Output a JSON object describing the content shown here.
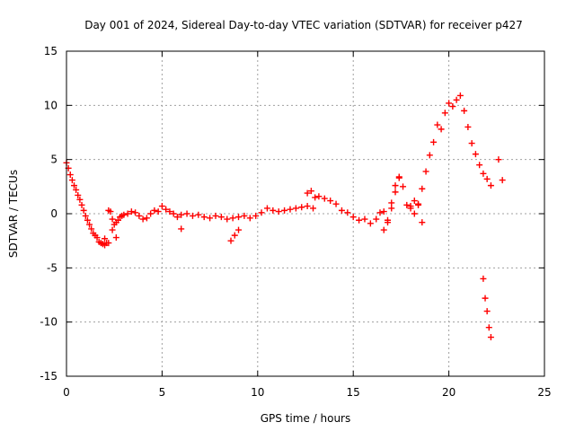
{
  "chart_data": {
    "type": "scatter",
    "title": "Day 001 of 2024, Sidereal Day-to-day VTEC variation (SDTVAR) for receiver p427",
    "xlabel": "GPS time / hours",
    "ylabel": "SDTVAR / TECUs",
    "xlim": [
      0,
      25
    ],
    "ylim": [
      -15,
      15
    ],
    "xticks": [
      0,
      5,
      10,
      15,
      20,
      25
    ],
    "yticks": [
      -15,
      -10,
      -5,
      0,
      5,
      10,
      15
    ],
    "xtick_labels": [
      "0",
      "5",
      "10",
      "15",
      "20",
      "25"
    ],
    "ytick_labels": [
      "-15",
      "-10",
      "-5",
      "0",
      "5",
      "10",
      "15"
    ],
    "grid": true,
    "marker": "plus",
    "series": [
      {
        "name": "SDTVAR p427",
        "color": "#ff0000",
        "x": [
          0.0,
          0.1,
          0.2,
          0.3,
          0.4,
          0.5,
          0.6,
          0.7,
          0.8,
          0.9,
          1.0,
          1.1,
          1.2,
          1.3,
          1.4,
          1.5,
          1.6,
          1.7,
          1.8,
          1.9,
          2.0,
          2.1,
          2.2,
          2.3,
          2.4,
          2.5,
          2.6,
          2.7,
          2.8,
          2.9,
          3.0,
          3.2,
          3.4,
          3.6,
          3.8,
          4.0,
          4.2,
          4.4,
          4.6,
          4.8,
          5.0,
          5.2,
          5.4,
          5.6,
          5.8,
          6.0,
          6.3,
          6.6,
          6.9,
          7.2,
          7.5,
          7.8,
          8.1,
          8.4,
          8.7,
          9.0,
          9.3,
          9.6,
          9.9,
          10.2,
          10.5,
          10.8,
          11.1,
          11.4,
          11.7,
          12.0,
          12.3,
          12.6,
          12.9,
          13.2,
          13.5,
          13.8,
          14.1,
          14.4,
          14.7,
          15.0,
          15.3,
          15.6,
          15.9,
          16.2,
          16.4,
          16.6,
          16.8,
          17.0,
          17.2,
          17.4,
          17.6,
          17.8,
          18.0,
          18.2,
          18.4,
          18.6,
          18.8,
          19.0,
          19.2,
          19.4,
          19.6,
          19.8,
          20.0,
          20.2,
          20.4,
          20.6,
          20.8,
          21.0,
          21.2,
          21.4,
          21.6,
          21.8,
          22.0,
          22.2,
          22.6,
          22.8,
          2.0,
          2.2,
          2.4,
          2.6,
          6.0,
          8.6,
          8.8,
          9.0,
          12.6,
          12.8,
          13.0,
          16.6,
          16.8,
          17.0,
          17.2,
          17.4,
          18.0,
          18.2,
          18.4,
          18.6,
          21.8,
          21.9,
          22.0,
          22.1,
          22.2
        ],
        "y": [
          4.7,
          4.2,
          3.6,
          3.1,
          2.6,
          2.2,
          1.7,
          1.3,
          0.8,
          0.3,
          -0.2,
          -0.6,
          -1.0,
          -1.4,
          -1.8,
          -2.0,
          -2.2,
          -2.6,
          -2.7,
          -2.8,
          -2.9,
          -2.7,
          0.3,
          0.2,
          -0.5,
          -1.0,
          -0.8,
          -0.6,
          -0.3,
          -0.2,
          -0.1,
          0.0,
          0.2,
          0.1,
          -0.2,
          -0.5,
          -0.4,
          0.0,
          0.3,
          0.2,
          0.7,
          0.4,
          0.2,
          0.0,
          -0.3,
          -0.1,
          0.0,
          -0.2,
          -0.1,
          -0.3,
          -0.4,
          -0.2,
          -0.3,
          -0.5,
          -0.4,
          -0.3,
          -0.2,
          -0.4,
          -0.2,
          0.1,
          0.5,
          0.3,
          0.2,
          0.3,
          0.4,
          0.5,
          0.6,
          0.7,
          0.5,
          1.6,
          1.4,
          1.2,
          0.9,
          0.3,
          0.1,
          -0.3,
          -0.6,
          -0.5,
          -0.9,
          -0.5,
          0.1,
          0.2,
          -0.6,
          0.5,
          2.0,
          3.4,
          2.5,
          0.8,
          0.5,
          0.0,
          0.8,
          2.3,
          3.9,
          5.4,
          6.6,
          8.2,
          7.8,
          9.3,
          10.2,
          9.9,
          10.5,
          10.9,
          9.5,
          8.0,
          6.5,
          5.5,
          4.5,
          3.7,
          3.2,
          2.6,
          5.0,
          3.1,
          -2.3,
          -2.7,
          -1.5,
          -2.2,
          -1.4,
          -2.5,
          -2.0,
          -1.5,
          1.9,
          2.1,
          1.5,
          -1.5,
          -0.8,
          1.0,
          2.6,
          3.3,
          0.7,
          1.2,
          0.9,
          -0.8,
          -6.0,
          -7.8,
          -9.0,
          -10.5,
          -11.4
        ]
      }
    ]
  }
}
